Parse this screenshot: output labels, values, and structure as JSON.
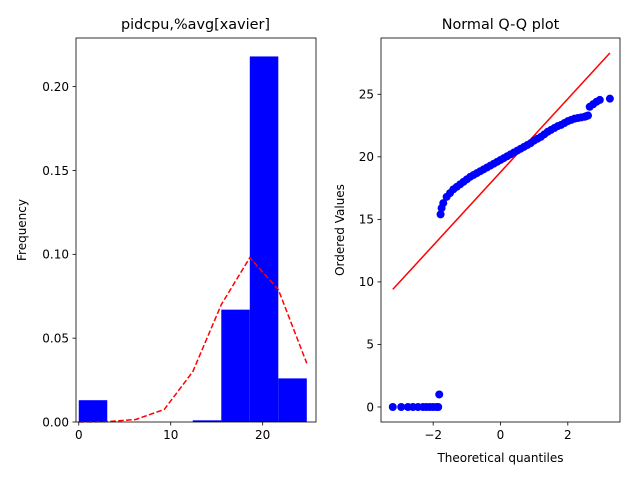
{
  "colors": {
    "bar": "#0000ff",
    "curve": "#ff0000",
    "points": "#0000ff",
    "line": "#ff0000",
    "axes": "#000000",
    "background": "#ffffff"
  },
  "chart_data": [
    {
      "type": "bar",
      "title": "pidcpu,%avg[xavier]",
      "xlabel": "",
      "ylabel": "Frequency",
      "xlim": [
        -0.3,
        25.8
      ],
      "ylim": [
        0,
        0.229
      ],
      "xticks": [
        0,
        10,
        20
      ],
      "yticks": [
        0.0,
        0.05,
        0.1,
        0.15,
        0.2
      ],
      "ytick_labels": [
        "0.00",
        "0.05",
        "0.10",
        "0.15",
        "0.20"
      ],
      "grid": false,
      "legend": "none",
      "bins": [
        {
          "x0": 0.0,
          "x1": 3.1,
          "value": 0.013
        },
        {
          "x0": 3.1,
          "x1": 6.2,
          "value": 0.0
        },
        {
          "x0": 6.2,
          "x1": 9.3,
          "value": 0.0
        },
        {
          "x0": 9.3,
          "x1": 12.4,
          "value": 0.0
        },
        {
          "x0": 12.4,
          "x1": 15.5,
          "value": 0.001
        },
        {
          "x0": 15.5,
          "x1": 18.6,
          "value": 0.067
        },
        {
          "x0": 18.6,
          "x1": 21.7,
          "value": 0.218
        },
        {
          "x0": 21.7,
          "x1": 24.8,
          "value": 0.026
        }
      ],
      "density_curve": {
        "style": "dashed",
        "x": [
          0.0,
          3.1,
          6.2,
          9.3,
          12.4,
          15.5,
          18.6,
          21.7,
          24.8
        ],
        "y": [
          0.0,
          0.0002,
          0.0015,
          0.0075,
          0.03,
          0.07,
          0.098,
          0.079,
          0.035
        ]
      }
    },
    {
      "type": "scatter",
      "title": "Normal Q-Q plot",
      "xlabel": "Theoretical quantiles",
      "ylabel": "Ordered Values",
      "xlim": [
        -3.55,
        3.55
      ],
      "ylim": [
        -1.2,
        29.5
      ],
      "xticks": [
        -2,
        0,
        2
      ],
      "yticks": [
        0,
        5,
        10,
        15,
        20,
        25
      ],
      "grid": false,
      "legend": "none",
      "fit_line": {
        "x": [
          -3.2,
          3.25
        ],
        "y": [
          9.4,
          28.3
        ]
      },
      "points": {
        "low_cluster": [
          [
            -3.2,
            0.0
          ],
          [
            -2.95,
            0.0
          ],
          [
            -2.75,
            0.0
          ],
          [
            -2.6,
            0.0
          ],
          [
            -2.45,
            0.0
          ],
          [
            -2.3,
            0.0
          ],
          [
            -2.2,
            0.0
          ],
          [
            -2.1,
            0.0
          ],
          [
            -2.0,
            0.0
          ],
          [
            -1.9,
            0.0
          ],
          [
            -1.85,
            0.0
          ],
          [
            -1.82,
            1.0
          ]
        ],
        "main_curve": [
          [
            -1.78,
            15.4
          ],
          [
            -1.75,
            15.9
          ],
          [
            -1.7,
            16.3
          ],
          [
            -1.6,
            16.8
          ],
          [
            -1.5,
            17.1
          ],
          [
            -1.4,
            17.4
          ],
          [
            -1.3,
            17.6
          ],
          [
            -1.2,
            17.8
          ],
          [
            -1.1,
            18.0
          ],
          [
            -1.0,
            18.2
          ],
          [
            -0.9,
            18.4
          ],
          [
            -0.8,
            18.55
          ],
          [
            -0.7,
            18.7
          ],
          [
            -0.6,
            18.85
          ],
          [
            -0.5,
            19.0
          ],
          [
            -0.4,
            19.15
          ],
          [
            -0.3,
            19.3
          ],
          [
            -0.2,
            19.45
          ],
          [
            -0.1,
            19.6
          ],
          [
            0.0,
            19.75
          ],
          [
            0.1,
            19.9
          ],
          [
            0.2,
            20.05
          ],
          [
            0.3,
            20.2
          ],
          [
            0.4,
            20.35
          ],
          [
            0.5,
            20.5
          ],
          [
            0.6,
            20.65
          ],
          [
            0.7,
            20.8
          ],
          [
            0.8,
            20.95
          ],
          [
            0.9,
            21.1
          ],
          [
            1.0,
            21.3
          ],
          [
            1.1,
            21.45
          ],
          [
            1.2,
            21.6
          ],
          [
            1.3,
            21.8
          ],
          [
            1.4,
            22.0
          ],
          [
            1.5,
            22.15
          ],
          [
            1.6,
            22.3
          ],
          [
            1.7,
            22.45
          ],
          [
            1.8,
            22.55
          ],
          [
            1.9,
            22.7
          ],
          [
            2.0,
            22.85
          ],
          [
            2.1,
            22.95
          ],
          [
            2.2,
            23.05
          ],
          [
            2.3,
            23.1
          ],
          [
            2.4,
            23.15
          ],
          [
            2.5,
            23.2
          ],
          [
            2.55,
            23.25
          ],
          [
            2.6,
            23.3
          ],
          [
            2.65,
            24.0
          ],
          [
            2.75,
            24.2
          ],
          [
            2.85,
            24.4
          ],
          [
            2.95,
            24.55
          ],
          [
            3.25,
            24.65
          ]
        ]
      }
    }
  ]
}
